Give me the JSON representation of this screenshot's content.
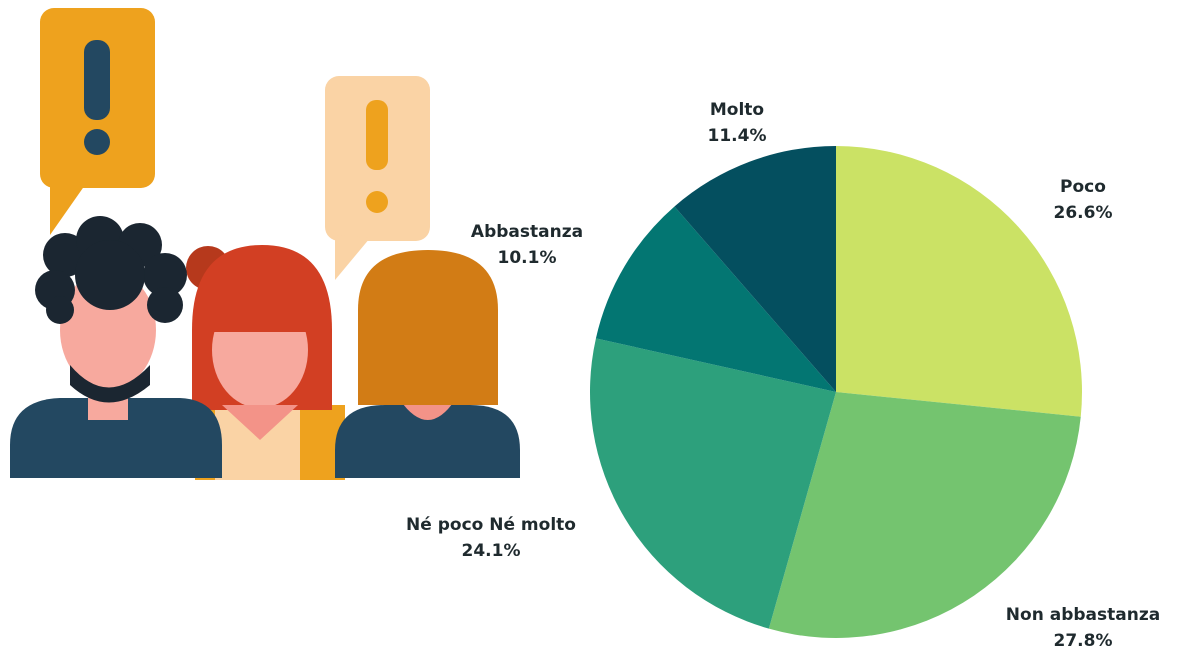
{
  "chart_data": {
    "type": "pie",
    "categories": [
      "Poco",
      "Non abbastanza",
      "Né poco Né molto",
      "Abbastanza",
      "Molto"
    ],
    "values": [
      26.6,
      27.8,
      24.1,
      10.1,
      11.4
    ],
    "value_labels": [
      "26.6%",
      "27.8%",
      "24.1%",
      "10.1%",
      "11.4%"
    ],
    "colors": [
      "#cbe265",
      "#74c46f",
      "#2da07c",
      "#037672",
      "#044f5f"
    ]
  }
}
